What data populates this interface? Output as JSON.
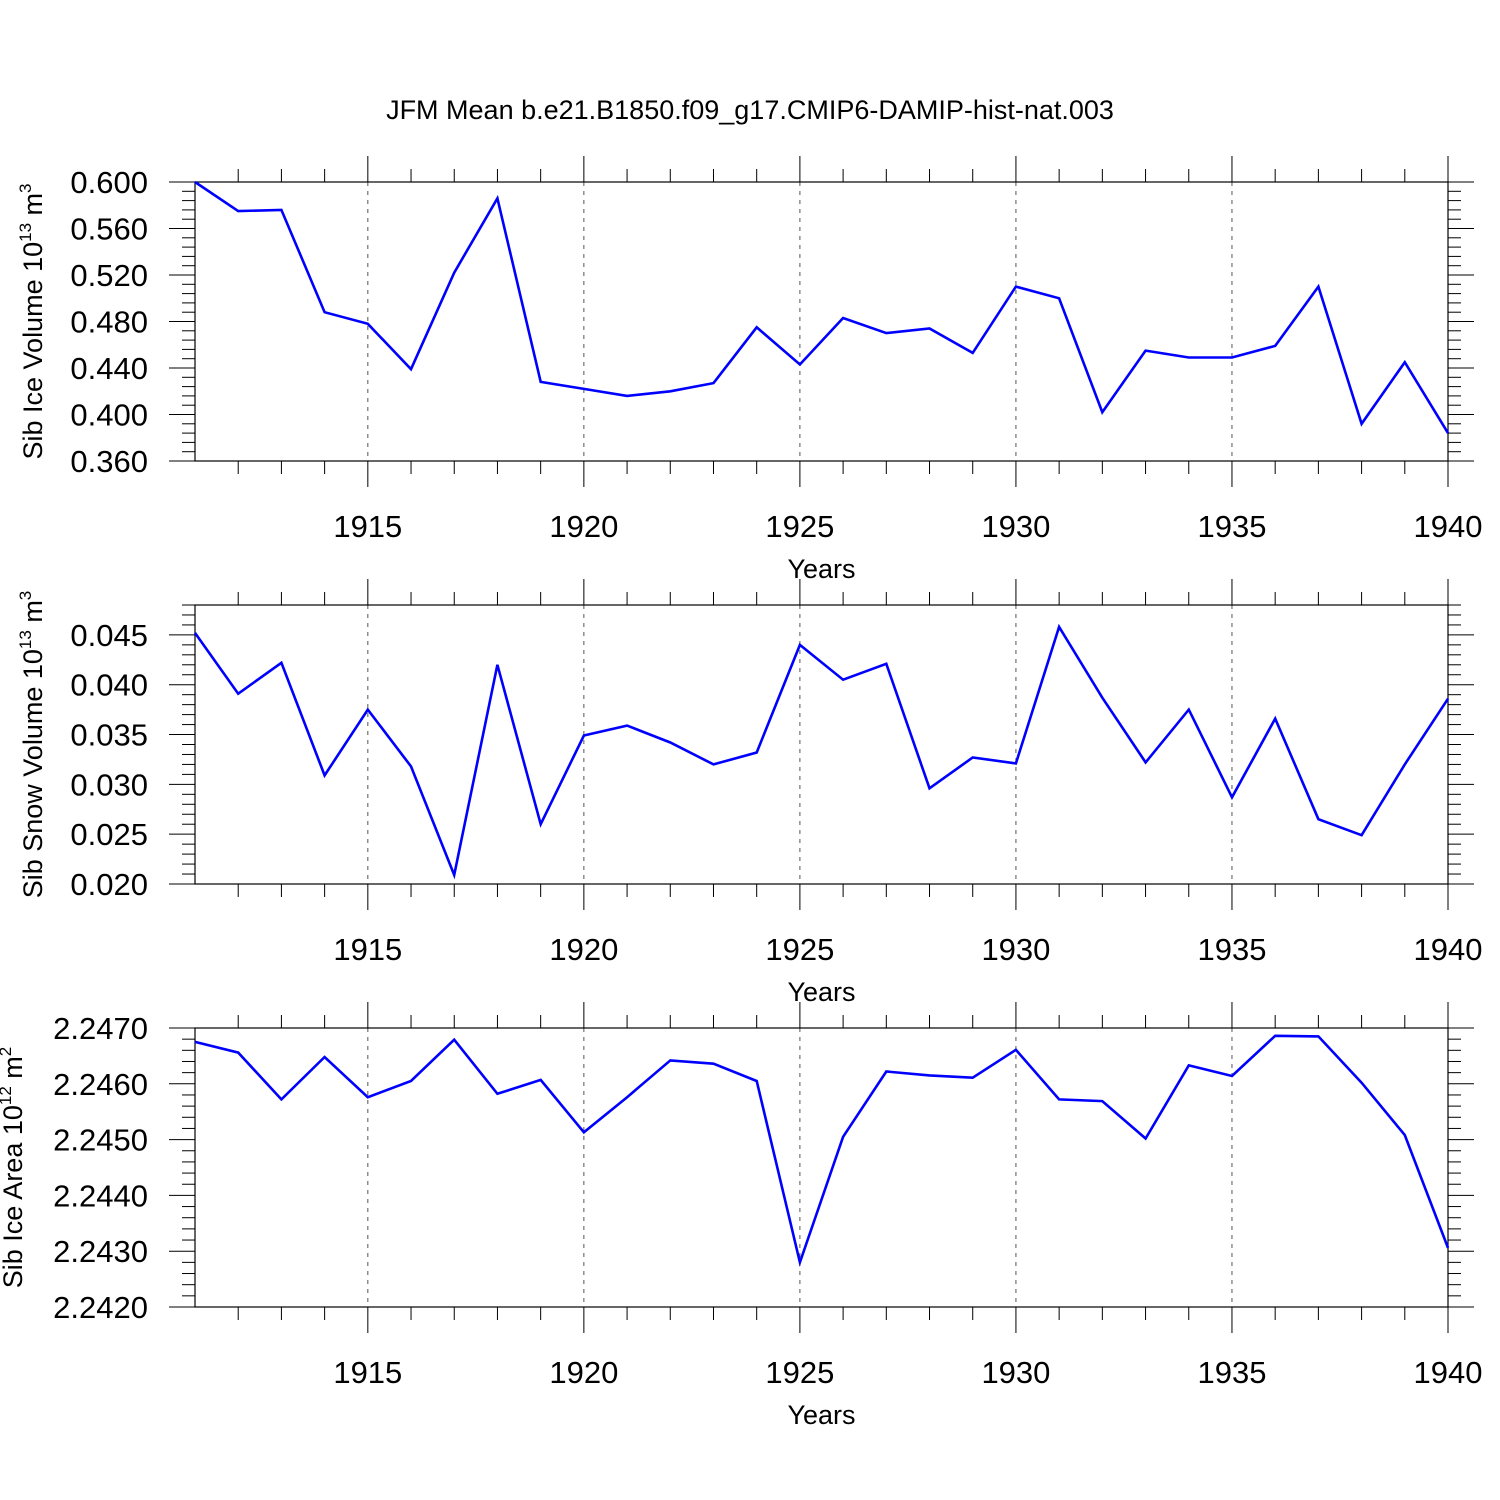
{
  "figure": {
    "title": "JFM Mean b.e21.B1850.f09_g17.CMIP6-DAMIP-hist-nat.003",
    "line_color": "#0000ff"
  },
  "chart_data": [
    {
      "type": "line",
      "xlabel": "Years",
      "ylabel": "Sib Ice Volume 10",
      "ylabel_sup": "13",
      "ylabel_unit": "m",
      "ylabel_unit_sup": "3",
      "xlim": [
        1911,
        1940
      ],
      "ylim": [
        0.36,
        0.6
      ],
      "x_ticks": [
        1915,
        1920,
        1925,
        1930,
        1935,
        1940
      ],
      "y_ticks": [
        0.36,
        0.4,
        0.44,
        0.48,
        0.52,
        0.56,
        0.6
      ],
      "y_tick_labels": [
        "0.360",
        "0.400",
        "0.440",
        "0.480",
        "0.520",
        "0.560",
        "0.600"
      ],
      "grid": "x-dashed",
      "x": [
        1911,
        1912,
        1913,
        1914,
        1915,
        1916,
        1917,
        1918,
        1919,
        1920,
        1921,
        1922,
        1923,
        1924,
        1925,
        1926,
        1927,
        1928,
        1929,
        1930,
        1931,
        1932,
        1933,
        1934,
        1935,
        1936,
        1937,
        1938,
        1939,
        1940
      ],
      "values": [
        0.6,
        0.575,
        0.576,
        0.488,
        0.478,
        0.439,
        0.522,
        0.586,
        0.428,
        0.422,
        0.416,
        0.42,
        0.427,
        0.475,
        0.443,
        0.483,
        0.47,
        0.474,
        0.453,
        0.51,
        0.5,
        0.402,
        0.455,
        0.449,
        0.449,
        0.459,
        0.51,
        0.392,
        0.445,
        0.384
      ]
    },
    {
      "type": "line",
      "xlabel": "Years",
      "ylabel": "Sib Snow Volume 10",
      "ylabel_sup": "13",
      "ylabel_unit": "m",
      "ylabel_unit_sup": "3",
      "xlim": [
        1911,
        1940
      ],
      "ylim": [
        0.02,
        0.048
      ],
      "x_ticks": [
        1915,
        1920,
        1925,
        1930,
        1935,
        1940
      ],
      "y_ticks": [
        0.02,
        0.025,
        0.03,
        0.035,
        0.04,
        0.045
      ],
      "y_tick_labels": [
        "0.020",
        "0.025",
        "0.030",
        "0.035",
        "0.040",
        "0.045"
      ],
      "grid": "x-dashed",
      "x": [
        1911,
        1912,
        1913,
        1914,
        1915,
        1916,
        1917,
        1918,
        1919,
        1920,
        1921,
        1922,
        1923,
        1924,
        1925,
        1926,
        1927,
        1928,
        1929,
        1930,
        1931,
        1932,
        1933,
        1934,
        1935,
        1936,
        1937,
        1938,
        1939,
        1940
      ],
      "values": [
        0.0452,
        0.0391,
        0.0422,
        0.0309,
        0.0375,
        0.0318,
        0.0209,
        0.042,
        0.026,
        0.0349,
        0.0359,
        0.0342,
        0.032,
        0.0332,
        0.044,
        0.0405,
        0.0421,
        0.0296,
        0.0327,
        0.0321,
        0.0458,
        0.0387,
        0.0322,
        0.0375,
        0.0287,
        0.0366,
        0.0265,
        0.0249,
        0.032,
        0.0386
      ]
    },
    {
      "type": "line",
      "xlabel": "Years",
      "ylabel": "Sib Ice Area 10",
      "ylabel_sup": "12",
      "ylabel_unit": "m",
      "ylabel_unit_sup": "2",
      "xlim": [
        1911,
        1940
      ],
      "ylim": [
        2.242,
        2.247
      ],
      "x_ticks": [
        1915,
        1920,
        1925,
        1930,
        1935,
        1940
      ],
      "y_ticks": [
        2.242,
        2.243,
        2.244,
        2.245,
        2.246,
        2.247
      ],
      "y_tick_labels": [
        "2.2420",
        "2.2430",
        "2.2440",
        "2.2450",
        "2.2460",
        "2.2470"
      ],
      "grid": "x-dashed",
      "x": [
        1911,
        1912,
        1913,
        1914,
        1915,
        1916,
        1917,
        1918,
        1919,
        1920,
        1921,
        1922,
        1923,
        1924,
        1925,
        1926,
        1927,
        1928,
        1929,
        1930,
        1931,
        1932,
        1933,
        1934,
        1935,
        1936,
        1937,
        1938,
        1939,
        1940
      ],
      "values": [
        2.24675,
        2.24656,
        2.24572,
        2.24648,
        2.24576,
        2.24605,
        2.24679,
        2.24582,
        2.24607,
        2.24513,
        2.24576,
        2.24642,
        2.24636,
        2.24605,
        2.2428,
        2.24505,
        2.24622,
        2.24615,
        2.24611,
        2.24661,
        2.24572,
        2.24569,
        2.24502,
        2.24633,
        2.24614,
        2.24686,
        2.24685,
        2.24602,
        2.24508,
        2.24306
      ]
    }
  ]
}
